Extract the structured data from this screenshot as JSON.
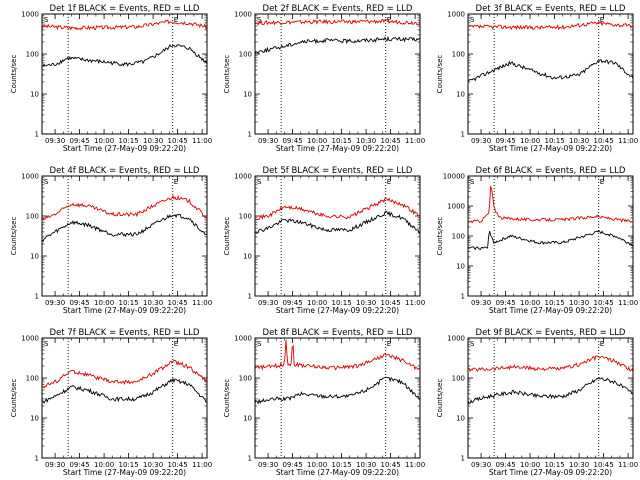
{
  "chart_data": [
    {
      "type": "line",
      "title": "Det 1f BLACK = Events, RED = LLD",
      "xlabel": "Start Time (27-May-09 09:22:20)",
      "ylabel": "Counts/sec",
      "x_ticks": [
        "09:30",
        "09:45",
        "10:00",
        "10:15",
        "10:30",
        "10:45",
        "11:00"
      ],
      "y_ticks": [
        "1",
        "10",
        "100",
        "1000"
      ],
      "y_scale": "log",
      "ylim": [
        1,
        1000
      ],
      "xlim": [
        "09:22",
        "11:03"
      ],
      "vlines": [
        "09:38",
        "10:42"
      ],
      "marker_labels": [
        "S",
        "E"
      ],
      "series": [
        {
          "color": "red",
          "x": [
            "09:22",
            "09:40",
            "10:00",
            "10:20",
            "10:40",
            "10:52",
            "11:03"
          ],
          "y": [
            500,
            450,
            460,
            480,
            650,
            600,
            480
          ]
        },
        {
          "color": "black",
          "x": [
            "09:22",
            "09:30",
            "09:38",
            "09:50",
            "10:05",
            "10:15",
            "10:25",
            "10:35",
            "10:42",
            "10:52",
            "11:03"
          ],
          "y": [
            50,
            55,
            80,
            70,
            60,
            55,
            65,
            110,
            170,
            140,
            60
          ]
        }
      ]
    },
    {
      "type": "line",
      "title": "Det 2f BLACK = Events, RED = LLD",
      "xlabel": "Start Time (27-May-09 09:22:20)",
      "ylabel": "Counts/sec",
      "x_ticks": [
        "09:30",
        "09:45",
        "10:00",
        "10:15",
        "10:30",
        "10:45",
        "11:00"
      ],
      "y_ticks": [
        "1",
        "10",
        "100",
        "1000"
      ],
      "y_scale": "log",
      "ylim": [
        1,
        1000
      ],
      "xlim": [
        "09:22",
        "11:03"
      ],
      "vlines": [
        "09:38",
        "10:42"
      ],
      "marker_labels": [
        "S",
        "E"
      ],
      "series": [
        {
          "color": "red",
          "x": [
            "09:22",
            "09:40",
            "10:00",
            "10:20",
            "10:40",
            "11:03"
          ],
          "y": [
            600,
            620,
            640,
            640,
            660,
            600
          ]
        },
        {
          "color": "black",
          "x": [
            "09:22",
            "09:38",
            "09:50",
            "10:05",
            "10:20",
            "10:42",
            "11:03"
          ],
          "y": [
            110,
            150,
            200,
            220,
            210,
            240,
            230
          ]
        }
      ]
    },
    {
      "type": "line",
      "title": "Det 3f BLACK = Events, RED = LLD",
      "xlabel": "Start Time (27-May-09 09:22:20)",
      "ylabel": "Counts/sec",
      "x_ticks": [
        "09:30",
        "09:45",
        "10:00",
        "10:15",
        "10:30",
        "10:45",
        "11:00"
      ],
      "y_ticks": [
        "1",
        "10",
        "100",
        "1000"
      ],
      "y_scale": "log",
      "ylim": [
        1,
        1000
      ],
      "xlim": [
        "09:22",
        "11:03"
      ],
      "vlines": [
        "09:38",
        "10:42"
      ],
      "marker_labels": [
        "S",
        "E"
      ],
      "series": [
        {
          "color": "red",
          "x": [
            "09:22",
            "09:40",
            "10:00",
            "10:20",
            "10:40",
            "11:03"
          ],
          "y": [
            480,
            480,
            460,
            470,
            600,
            500
          ]
        },
        {
          "color": "black",
          "x": [
            "09:22",
            "09:38",
            "09:48",
            "10:00",
            "10:15",
            "10:30",
            "10:42",
            "10:52",
            "11:03"
          ],
          "y": [
            20,
            40,
            60,
            40,
            25,
            30,
            70,
            60,
            25
          ]
        }
      ]
    },
    {
      "type": "line",
      "title": "Det 4f BLACK = Events, RED = LLD",
      "xlabel": "Start Time (27-May-09 09:22:20)",
      "ylabel": "Counts/sec",
      "x_ticks": [
        "09:30",
        "09:45",
        "10:00",
        "10:15",
        "10:30",
        "10:45",
        "11:00"
      ],
      "y_ticks": [
        "1",
        "10",
        "100",
        "1000"
      ],
      "y_scale": "log",
      "ylim": [
        1,
        1000
      ],
      "xlim": [
        "09:22",
        "11:03"
      ],
      "vlines": [
        "09:38",
        "10:42"
      ],
      "marker_labels": [
        "S",
        "E"
      ],
      "series": [
        {
          "color": "red",
          "x": [
            "09:22",
            "09:30",
            "09:40",
            "09:50",
            "10:05",
            "10:20",
            "10:30",
            "10:42",
            "10:52",
            "11:03"
          ],
          "y": [
            80,
            110,
            200,
            180,
            110,
            110,
            180,
            300,
            240,
            90
          ]
        },
        {
          "color": "black",
          "x": [
            "09:22",
            "09:30",
            "09:40",
            "09:50",
            "10:05",
            "10:20",
            "10:30",
            "10:42",
            "10:52",
            "11:03"
          ],
          "y": [
            25,
            40,
            70,
            60,
            35,
            35,
            60,
            110,
            90,
            30
          ]
        }
      ]
    },
    {
      "type": "line",
      "title": "Det 5f BLACK = Events, RED = LLD",
      "xlabel": "Start Time (27-May-09 09:22:20)",
      "ylabel": "Counts/sec",
      "x_ticks": [
        "09:30",
        "09:45",
        "10:00",
        "10:15",
        "10:30",
        "10:45",
        "11:00"
      ],
      "y_ticks": [
        "1",
        "10",
        "100",
        "1000"
      ],
      "y_scale": "log",
      "ylim": [
        1,
        1000
      ],
      "xlim": [
        "09:22",
        "11:03"
      ],
      "vlines": [
        "09:38",
        "10:42"
      ],
      "marker_labels": [
        "S",
        "E"
      ],
      "series": [
        {
          "color": "red",
          "x": [
            "09:22",
            "09:30",
            "09:40",
            "09:50",
            "10:05",
            "10:20",
            "10:30",
            "10:42",
            "10:52",
            "11:03"
          ],
          "y": [
            90,
            100,
            170,
            150,
            100,
            95,
            150,
            260,
            200,
            100
          ]
        },
        {
          "color": "black",
          "x": [
            "09:22",
            "09:30",
            "09:40",
            "09:50",
            "10:05",
            "10:20",
            "10:30",
            "10:42",
            "10:52",
            "11:03"
          ],
          "y": [
            40,
            50,
            80,
            70,
            45,
            45,
            70,
            120,
            90,
            40
          ]
        }
      ]
    },
    {
      "type": "line",
      "title": "Det 6f BLACK = Events, RED = LLD",
      "xlabel": "Start Time (27-May-09 09:22:20)",
      "ylabel": "Counts/sec",
      "x_ticks": [
        "09:30",
        "09:45",
        "10:00",
        "10:15",
        "10:30",
        "10:45",
        "11:00"
      ],
      "y_ticks": [
        "1",
        "10",
        "100",
        "1000",
        "10000"
      ],
      "y_scale": "log",
      "ylim": [
        1,
        10000
      ],
      "xlim": [
        "09:22",
        "11:03"
      ],
      "vlines": [
        "09:38",
        "10:42"
      ],
      "marker_labels": [
        "S",
        "E"
      ],
      "series": [
        {
          "color": "red",
          "x": [
            "09:22",
            "09:30",
            "09:35",
            "09:36",
            "09:38",
            "09:42",
            "10:00",
            "10:20",
            "10:40",
            "11:03"
          ],
          "y": [
            300,
            320,
            600,
            6000,
            800,
            400,
            350,
            350,
            450,
            300
          ]
        },
        {
          "color": "black",
          "x": [
            "09:22",
            "09:34",
            "09:35",
            "09:38",
            "09:48",
            "10:05",
            "10:20",
            "10:42",
            "10:52",
            "11:03"
          ],
          "y": [
            40,
            40,
            150,
            60,
            100,
            60,
            60,
            140,
            100,
            50
          ]
        }
      ]
    },
    {
      "type": "line",
      "title": "Det 7f BLACK = Events, RED = LLD",
      "xlabel": "Start Time (27-May-09 09:22:20)",
      "ylabel": "Counts/sec",
      "x_ticks": [
        "09:30",
        "09:45",
        "10:00",
        "10:15",
        "10:30",
        "10:45",
        "11:00"
      ],
      "y_ticks": [
        "1",
        "10",
        "100",
        "1000"
      ],
      "y_scale": "log",
      "ylim": [
        1,
        1000
      ],
      "xlim": [
        "09:22",
        "11:03"
      ],
      "vlines": [
        "09:38",
        "10:42"
      ],
      "marker_labels": [
        "S",
        "E"
      ],
      "series": [
        {
          "color": "red",
          "x": [
            "09:22",
            "09:30",
            "09:40",
            "09:50",
            "10:05",
            "10:20",
            "10:30",
            "10:42",
            "10:52",
            "11:03"
          ],
          "y": [
            60,
            80,
            150,
            120,
            80,
            80,
            130,
            260,
            190,
            80
          ]
        },
        {
          "color": "black",
          "x": [
            "09:22",
            "09:30",
            "09:40",
            "09:50",
            "10:05",
            "10:20",
            "10:30",
            "10:42",
            "10:52",
            "11:03"
          ],
          "y": [
            25,
            35,
            60,
            50,
            30,
            30,
            45,
            90,
            70,
            25
          ]
        }
      ]
    },
    {
      "type": "line",
      "title": "Det 8f BLACK = Events, RED = LLD",
      "xlabel": "Start Time (27-May-09 09:22:20)",
      "ylabel": "Counts/sec",
      "x_ticks": [
        "09:30",
        "09:45",
        "10:00",
        "10:15",
        "10:30",
        "10:45",
        "11:00"
      ],
      "y_ticks": [
        "1",
        "10",
        "100",
        "1000"
      ],
      "y_scale": "log",
      "ylim": [
        1,
        1000
      ],
      "xlim": [
        "09:22",
        "11:03"
      ],
      "vlines": [
        "09:38",
        "10:42"
      ],
      "marker_labels": [
        "S",
        "E"
      ],
      "series": [
        {
          "color": "red",
          "x": [
            "09:22",
            "09:35",
            "09:40",
            "09:41",
            "09:42",
            "09:44",
            "09:45",
            "09:46",
            "09:55",
            "10:10",
            "10:25",
            "10:42",
            "10:52",
            "11:03"
          ],
          "y": [
            180,
            200,
            220,
            1000,
            220,
            210,
            1000,
            220,
            200,
            180,
            200,
            380,
            280,
            160
          ]
        },
        {
          "color": "black",
          "x": [
            "09:22",
            "09:35",
            "09:42",
            "09:50",
            "10:05",
            "10:20",
            "10:30",
            "10:42",
            "10:52",
            "11:03"
          ],
          "y": [
            25,
            30,
            30,
            40,
            35,
            35,
            50,
            100,
            80,
            30
          ]
        }
      ]
    },
    {
      "type": "line",
      "title": "Det 9f BLACK = Events, RED = LLD",
      "xlabel": "Start Time (27-May-09 09:22:20)",
      "ylabel": "Counts/sec",
      "x_ticks": [
        "09:30",
        "09:45",
        "10:00",
        "10:15",
        "10:30",
        "10:45",
        "11:00"
      ],
      "y_ticks": [
        "1",
        "10",
        "100",
        "1000"
      ],
      "y_scale": "log",
      "ylim": [
        1,
        1000
      ],
      "xlim": [
        "09:22",
        "11:03"
      ],
      "vlines": [
        "09:38",
        "10:42"
      ],
      "marker_labels": [
        "S",
        "E"
      ],
      "series": [
        {
          "color": "red",
          "x": [
            "09:22",
            "09:35",
            "09:50",
            "10:05",
            "10:20",
            "10:30",
            "10:42",
            "10:52",
            "11:03"
          ],
          "y": [
            160,
            170,
            190,
            170,
            170,
            220,
            350,
            260,
            150
          ]
        },
        {
          "color": "black",
          "x": [
            "09:22",
            "09:35",
            "09:50",
            "10:05",
            "10:20",
            "10:30",
            "10:42",
            "10:52",
            "11:03"
          ],
          "y": [
            25,
            35,
            45,
            35,
            35,
            50,
            100,
            80,
            40
          ]
        }
      ]
    }
  ]
}
